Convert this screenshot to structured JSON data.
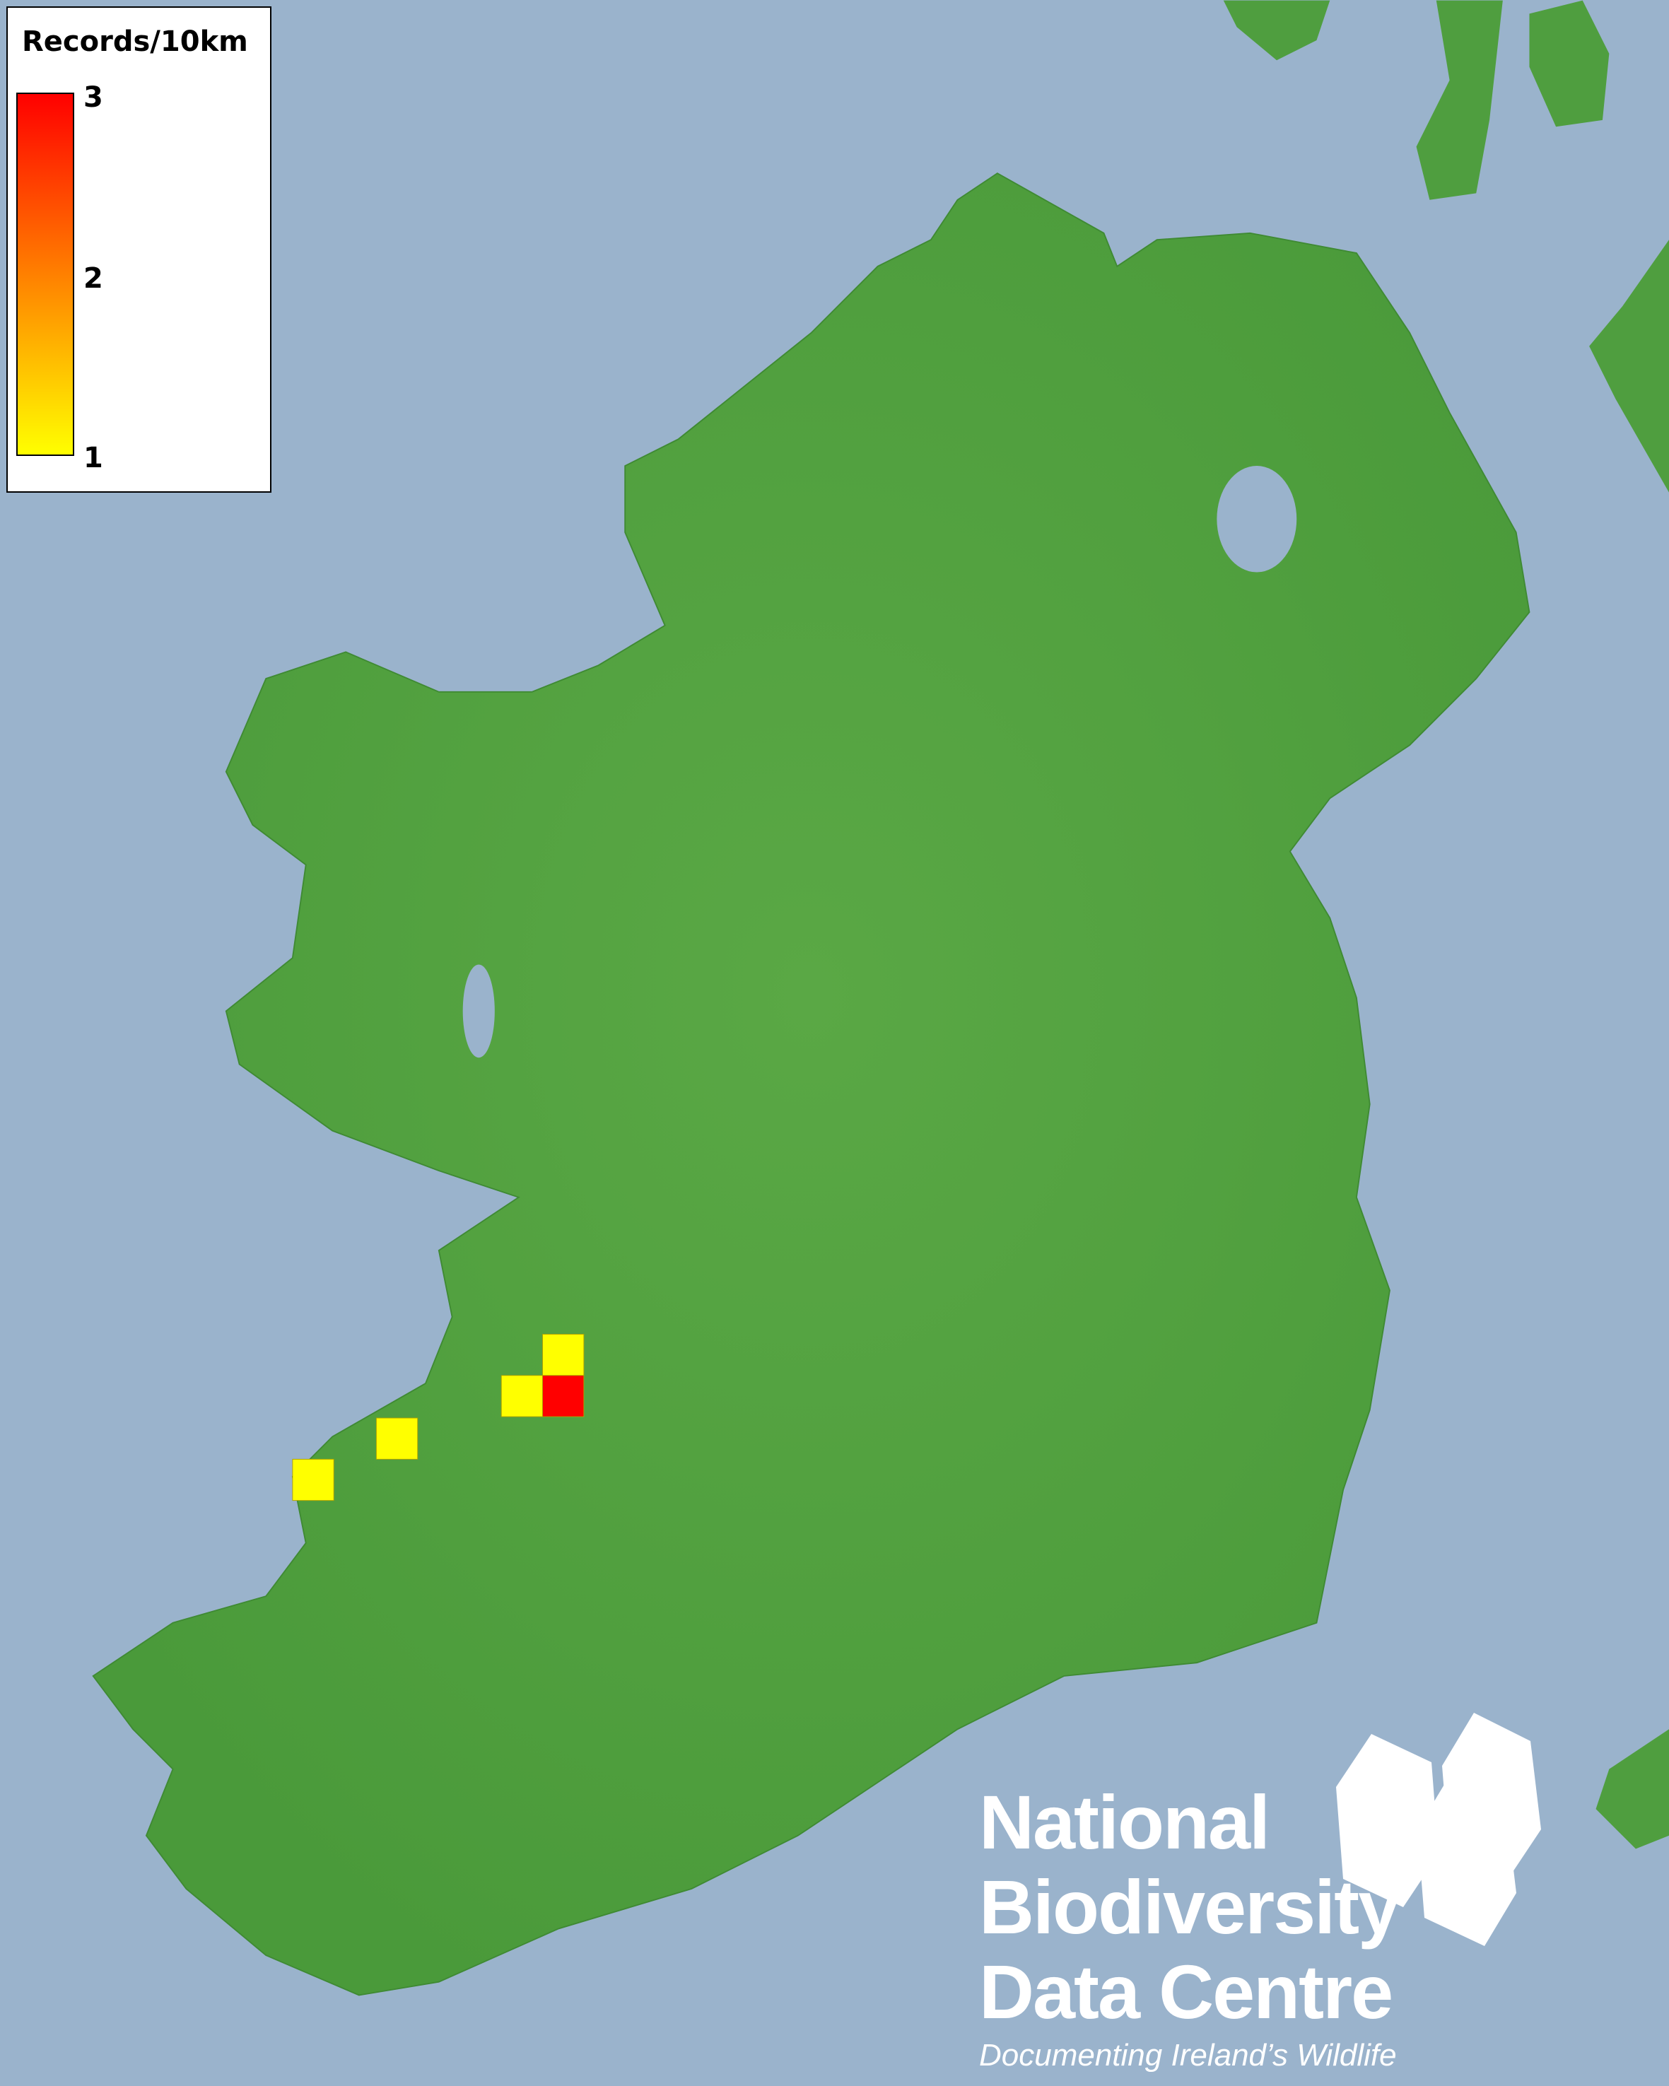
{
  "legend": {
    "title": "Records/10km",
    "ticks": [
      "3",
      "2",
      "1"
    ],
    "range": [
      1,
      3
    ],
    "colors": {
      "low": "#ffff00",
      "mid": "#ff8000",
      "high": "#ff0000"
    }
  },
  "records": [
    {
      "count": 1
    },
    {
      "count": 1
    },
    {
      "count": 3
    },
    {
      "count": 1
    },
    {
      "count": 1
    }
  ],
  "colors": {
    "sea": "#9ab3cc",
    "land": "#4f9e3f"
  },
  "logo": {
    "line1": "National",
    "line2": "Biodiversity",
    "line3": "Data Centre",
    "tagline": "Documenting Ireland’s Wildlife",
    "icons": [
      "plant-icon",
      "butterfly-icon",
      "seahorse-icon"
    ]
  }
}
